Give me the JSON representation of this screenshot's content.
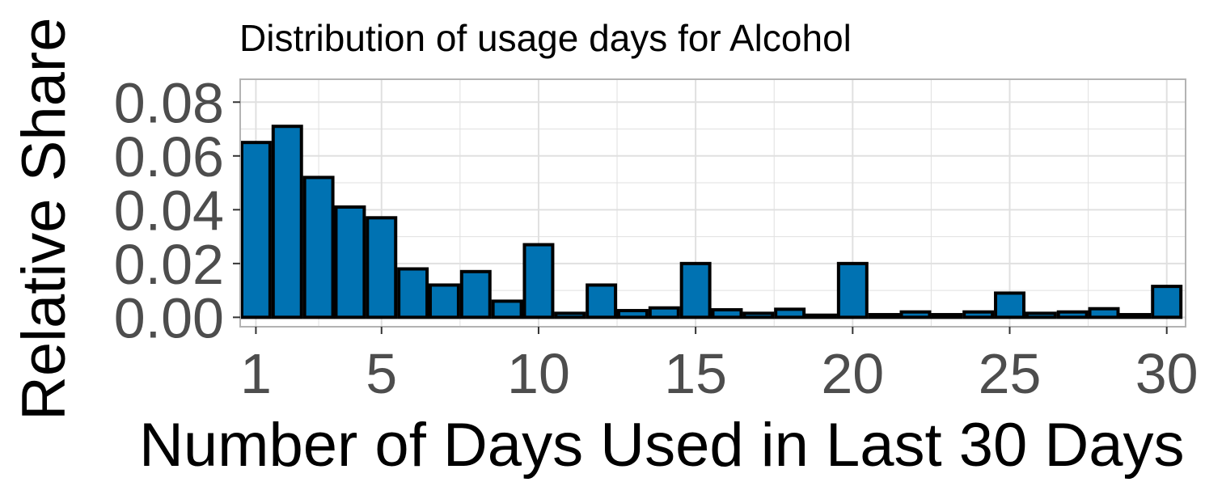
{
  "chart_data": {
    "type": "bar",
    "title": "Distribution of usage days for Alcohol",
    "xlabel": "Number of Days Used in Last 30 Days",
    "ylabel": "Relative Share",
    "x": [
      1,
      2,
      3,
      4,
      5,
      6,
      7,
      8,
      9,
      10,
      11,
      12,
      13,
      14,
      15,
      16,
      17,
      18,
      19,
      20,
      21,
      22,
      23,
      24,
      25,
      26,
      27,
      28,
      29,
      30
    ],
    "values": [
      0.065,
      0.071,
      0.052,
      0.041,
      0.037,
      0.018,
      0.012,
      0.017,
      0.006,
      0.027,
      0.0015,
      0.012,
      0.0025,
      0.0035,
      0.02,
      0.0028,
      0.0015,
      0.003,
      0.0008,
      0.02,
      0.001,
      0.002,
      0.001,
      0.002,
      0.009,
      0.0015,
      0.002,
      0.0032,
      0.001,
      0.0115
    ],
    "x_ticks": [
      1,
      5,
      10,
      15,
      20,
      25,
      30
    ],
    "x_tick_labels": [
      "1",
      "5",
      "10",
      "15",
      "20",
      "25",
      "30"
    ],
    "y_ticks": [
      0,
      0.02,
      0.04,
      0.06,
      0.08
    ],
    "y_tick_labels": [
      "0.00",
      "0.02",
      "0.04",
      "0.06",
      "0.08"
    ],
    "xlim": [
      0.5,
      30.6
    ],
    "ylim": [
      -0.0035,
      0.0885
    ],
    "grid": true,
    "bar_color": "#0072B2",
    "bar_edge_color": "#000000",
    "panel_border_color": "#B3B3B3",
    "grid_color": "#E0E0E0"
  }
}
